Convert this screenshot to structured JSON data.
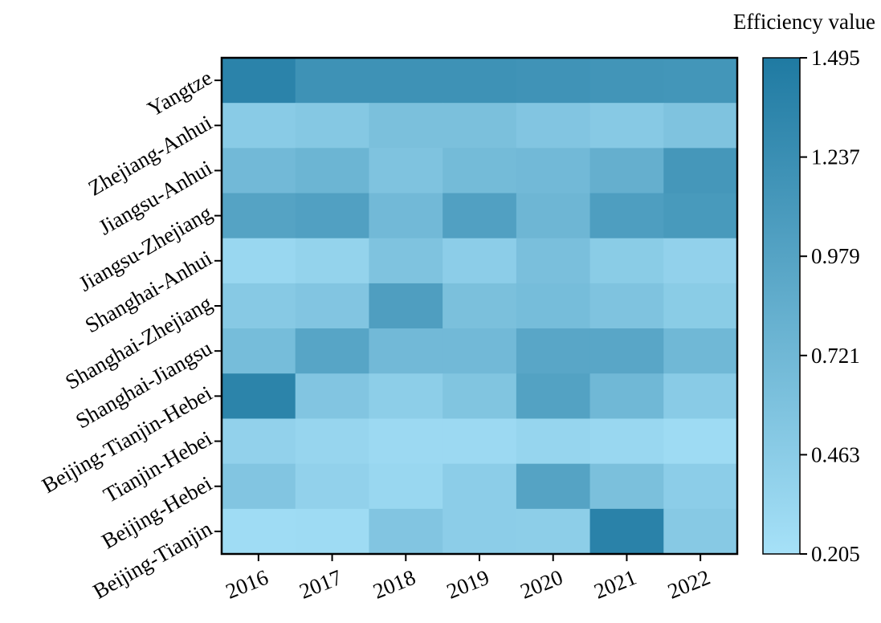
{
  "chart_data": {
    "type": "heatmap",
    "title": "",
    "xlabel": "",
    "ylabel": "",
    "x": [
      "2016",
      "2017",
      "2018",
      "2019",
      "2020",
      "2021",
      "2022"
    ],
    "y": [
      "Yangtze",
      "Zhejiang-Anhui",
      "Jiangsu-Anhui",
      "Jiangsu-Zhejiang",
      "Shanghai-Anhui",
      "Shanghai-Zhejiang",
      "Shanghai-Jiangsu",
      "Beijing-Tianjin-Hebei",
      "Tianjin-Hebei",
      "Beijing-Hebei",
      "Beijing-Tianjin"
    ],
    "values": [
      [
        1.38,
        1.2,
        1.2,
        1.2,
        1.18,
        1.16,
        1.15
      ],
      [
        0.48,
        0.52,
        0.62,
        0.62,
        0.55,
        0.5,
        0.58
      ],
      [
        0.7,
        0.76,
        0.58,
        0.68,
        0.7,
        0.83,
        1.13
      ],
      [
        0.98,
        1.02,
        0.7,
        1.02,
        0.74,
        1.05,
        1.1
      ],
      [
        0.33,
        0.38,
        0.58,
        0.45,
        0.63,
        0.47,
        0.4
      ],
      [
        0.5,
        0.55,
        1.04,
        0.62,
        0.66,
        0.58,
        0.47
      ],
      [
        0.66,
        0.96,
        0.7,
        0.7,
        0.94,
        0.94,
        0.72
      ],
      [
        1.37,
        0.55,
        0.44,
        0.56,
        1.0,
        0.72,
        0.48
      ],
      [
        0.4,
        0.35,
        0.3,
        0.3,
        0.36,
        0.33,
        0.28
      ],
      [
        0.55,
        0.4,
        0.33,
        0.45,
        0.98,
        0.62,
        0.45
      ],
      [
        0.27,
        0.28,
        0.55,
        0.45,
        0.44,
        1.39,
        0.5
      ]
    ],
    "colorbar": {
      "label": "Efficiency value",
      "min": 0.205,
      "max": 1.495,
      "ticks": [
        "0.205",
        "0.463",
        "0.721",
        "0.979",
        "1.237",
        "1.495"
      ],
      "low_color": "#a6e1f8",
      "high_color": "#1f7aa2"
    },
    "grid": false,
    "legend": "right"
  }
}
